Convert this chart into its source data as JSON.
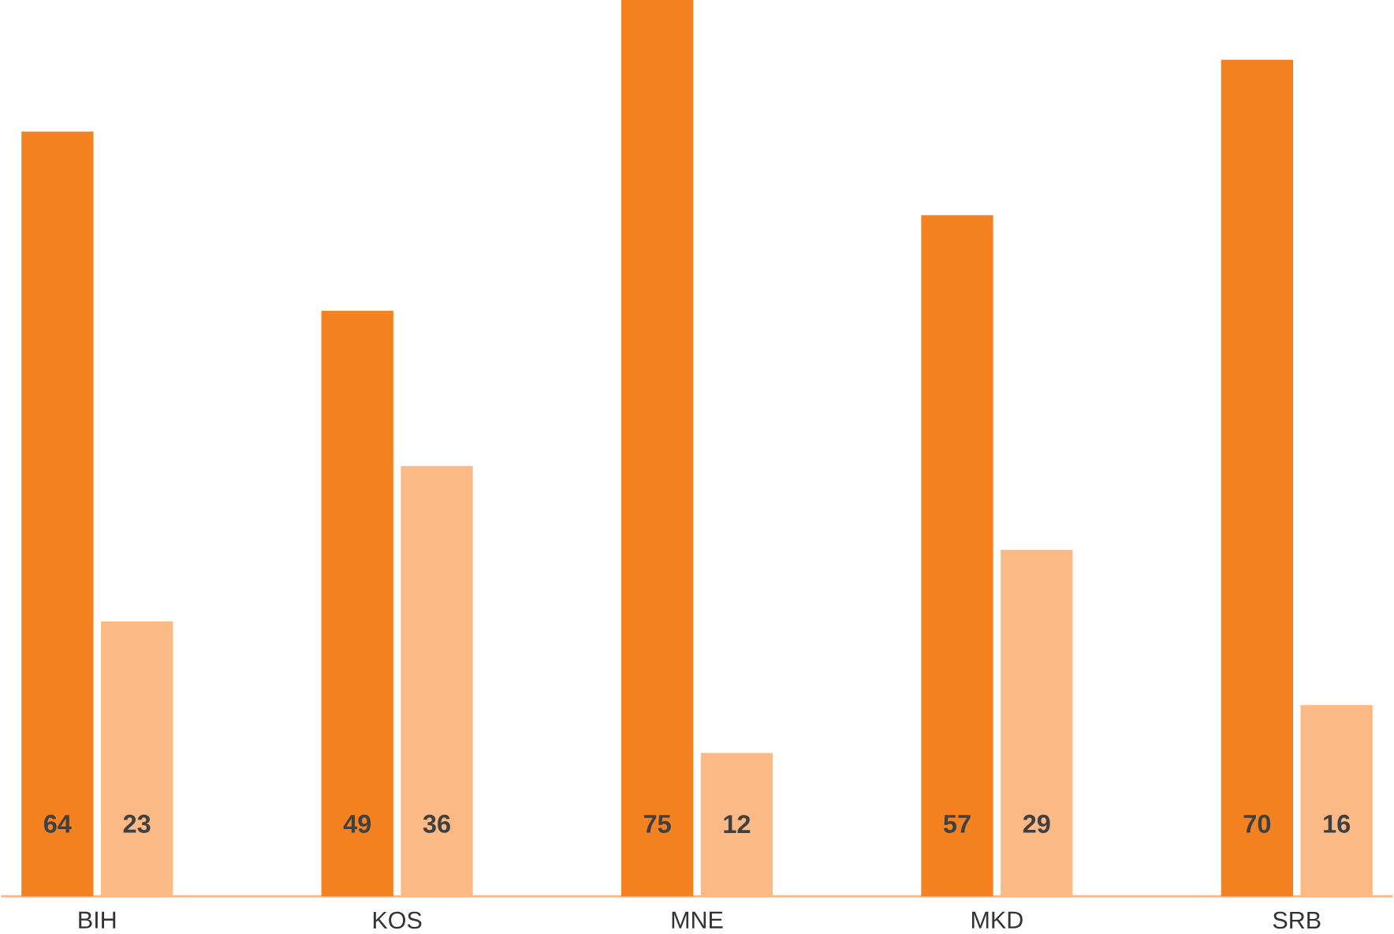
{
  "chart_data": {
    "type": "bar",
    "categories": [
      "BIH",
      "KOS",
      "MNE",
      "MKD",
      "SRB"
    ],
    "series": [
      {
        "color": "#f58220",
        "values": [
          64,
          49,
          75,
          57,
          70
        ]
      },
      {
        "color": "#fbb985",
        "values": [
          23,
          36,
          12,
          29,
          16
        ]
      }
    ],
    "data_labels": true
  }
}
